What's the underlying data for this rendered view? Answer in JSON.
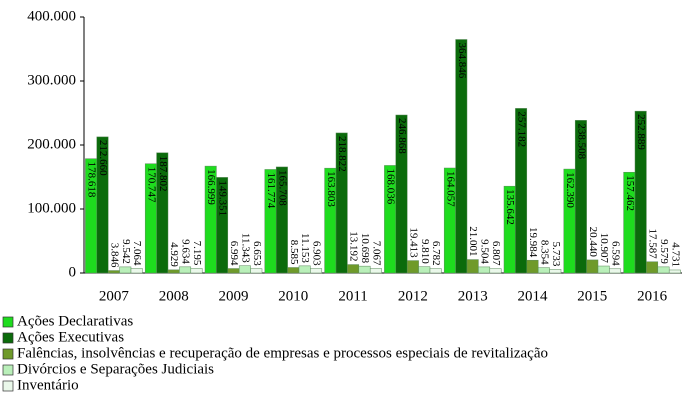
{
  "chart_data": {
    "type": "bar",
    "categories": [
      "2007",
      "2008",
      "2009",
      "2010",
      "2011",
      "2012",
      "2013",
      "2014",
      "2015",
      "2016"
    ],
    "series": [
      {
        "name": "Ações Declarativas",
        "color": "#1edc1e",
        "values": [
          178618,
          170747,
          166999,
          161774,
          163803,
          168036,
          164057,
          135642,
          162390,
          157462
        ],
        "value_labels": [
          "178.618",
          "170.747",
          "166.999",
          "161.774",
          "163.803",
          "168.036",
          "164.057",
          "135.642",
          "162.390",
          "157.462"
        ]
      },
      {
        "name": "Ações Executivas",
        "color": "#0b6b0b",
        "values": [
          212660,
          187802,
          149351,
          165708,
          218822,
          246868,
          364846,
          257182,
          238508,
          252889
        ],
        "value_labels": [
          "212.660",
          "187.802",
          "149.351",
          "165.708",
          "218.822",
          "246.868",
          "364.846",
          "257.182",
          "238.508",
          "252.889"
        ]
      },
      {
        "name": "Falências, insolvências e recuperação de empresas e processos especiais de revitalização",
        "color": "#6f9a2a",
        "values": [
          3846,
          4929,
          6994,
          8585,
          13192,
          19413,
          21001,
          19984,
          20440,
          17587
        ],
        "value_labels": [
          "3.846",
          "4.929",
          "6.994",
          "8.585",
          "13.192",
          "19.413",
          "21.001",
          "19.984",
          "20.440",
          "17.587"
        ]
      },
      {
        "name": "Divórcios e Separações Judiciais",
        "color": "#b9efb9",
        "values": [
          9542,
          9634,
          11343,
          11153,
          10698,
          9810,
          9504,
          8354,
          10907,
          9579
        ],
        "value_labels": [
          "9.542",
          "9.634",
          "11.343",
          "11.153",
          "10.698",
          "9.810",
          "9.504",
          "8.354",
          "10.907",
          "9.579"
        ]
      },
      {
        "name": "Inventário",
        "color": "#eaf8ea",
        "values": [
          7064,
          7195,
          6653,
          6903,
          7067,
          6782,
          6807,
          5733,
          6594,
          4731
        ],
        "value_labels": [
          "7.064",
          "7.195",
          "6.653",
          "6.903",
          "7.067",
          "6.782",
          "6.807",
          "5.733",
          "6.594",
          "4.731"
        ]
      }
    ],
    "ylim": [
      0,
      400000
    ],
    "yticks": [
      0,
      {
        "value": 100000,
        "label": "100.000"
      },
      {
        "value": 200000,
        "label": "200.000"
      },
      {
        "value": 300000,
        "label": "300.000"
      },
      {
        "value": 400000,
        "label": "400.000"
      }
    ],
    "grid": false
  }
}
